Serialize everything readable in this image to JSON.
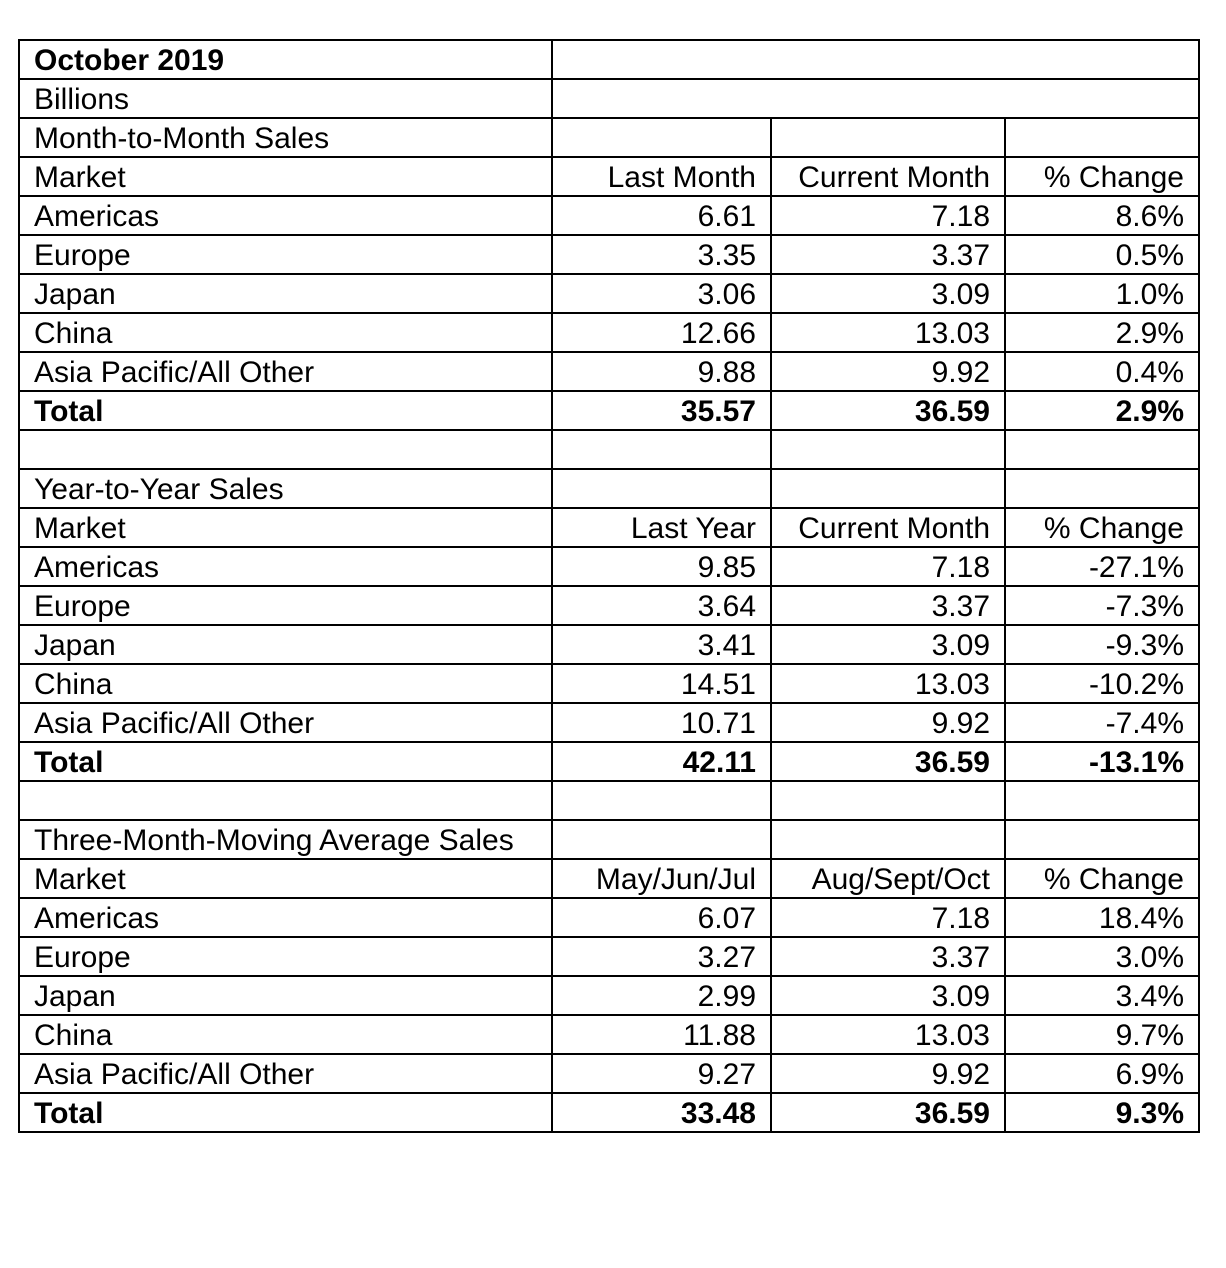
{
  "title": "October 2019",
  "units": "Billions",
  "sections": [
    {
      "heading": "Month-to-Month Sales",
      "columns": [
        "Market",
        "Last Month",
        "Current Month",
        "% Change"
      ],
      "rows": [
        [
          "Americas",
          "6.61",
          "7.18",
          "8.6%"
        ],
        [
          "Europe",
          "3.35",
          "3.37",
          "0.5%"
        ],
        [
          "Japan",
          "3.06",
          "3.09",
          "1.0%"
        ],
        [
          "China",
          "12.66",
          "13.03",
          "2.9%"
        ],
        [
          "Asia Pacific/All Other",
          "9.88",
          "9.92",
          "0.4%"
        ]
      ],
      "total": [
        "Total",
        "35.57",
        "36.59",
        "2.9%"
      ]
    },
    {
      "heading": "Year-to-Year Sales",
      "columns": [
        "Market",
        "Last Year",
        "Current Month",
        "% Change"
      ],
      "rows": [
        [
          "Americas",
          "9.85",
          "7.18",
          "-27.1%"
        ],
        [
          "Europe",
          "3.64",
          "3.37",
          "-7.3%"
        ],
        [
          "Japan",
          "3.41",
          "3.09",
          "-9.3%"
        ],
        [
          "China",
          "14.51",
          "13.03",
          "-10.2%"
        ],
        [
          "Asia Pacific/All Other",
          "10.71",
          "9.92",
          "-7.4%"
        ]
      ],
      "total": [
        "Total",
        "42.11",
        "36.59",
        "-13.1%"
      ]
    },
    {
      "heading": "Three-Month-Moving Average Sales",
      "columns": [
        "Market",
        "May/Jun/Jul",
        "Aug/Sept/Oct",
        "% Change"
      ],
      "rows": [
        [
          "Americas",
          "6.07",
          "7.18",
          "18.4%"
        ],
        [
          "Europe",
          "3.27",
          "3.37",
          "3.0%"
        ],
        [
          "Japan",
          "2.99",
          "3.09",
          "3.4%"
        ],
        [
          "China",
          "11.88",
          "13.03",
          "9.7%"
        ],
        [
          "Asia Pacific/All Other",
          "9.27",
          "9.92",
          "6.9%"
        ]
      ],
      "total": [
        "Total",
        "33.48",
        "36.59",
        "9.3%"
      ]
    }
  ]
}
